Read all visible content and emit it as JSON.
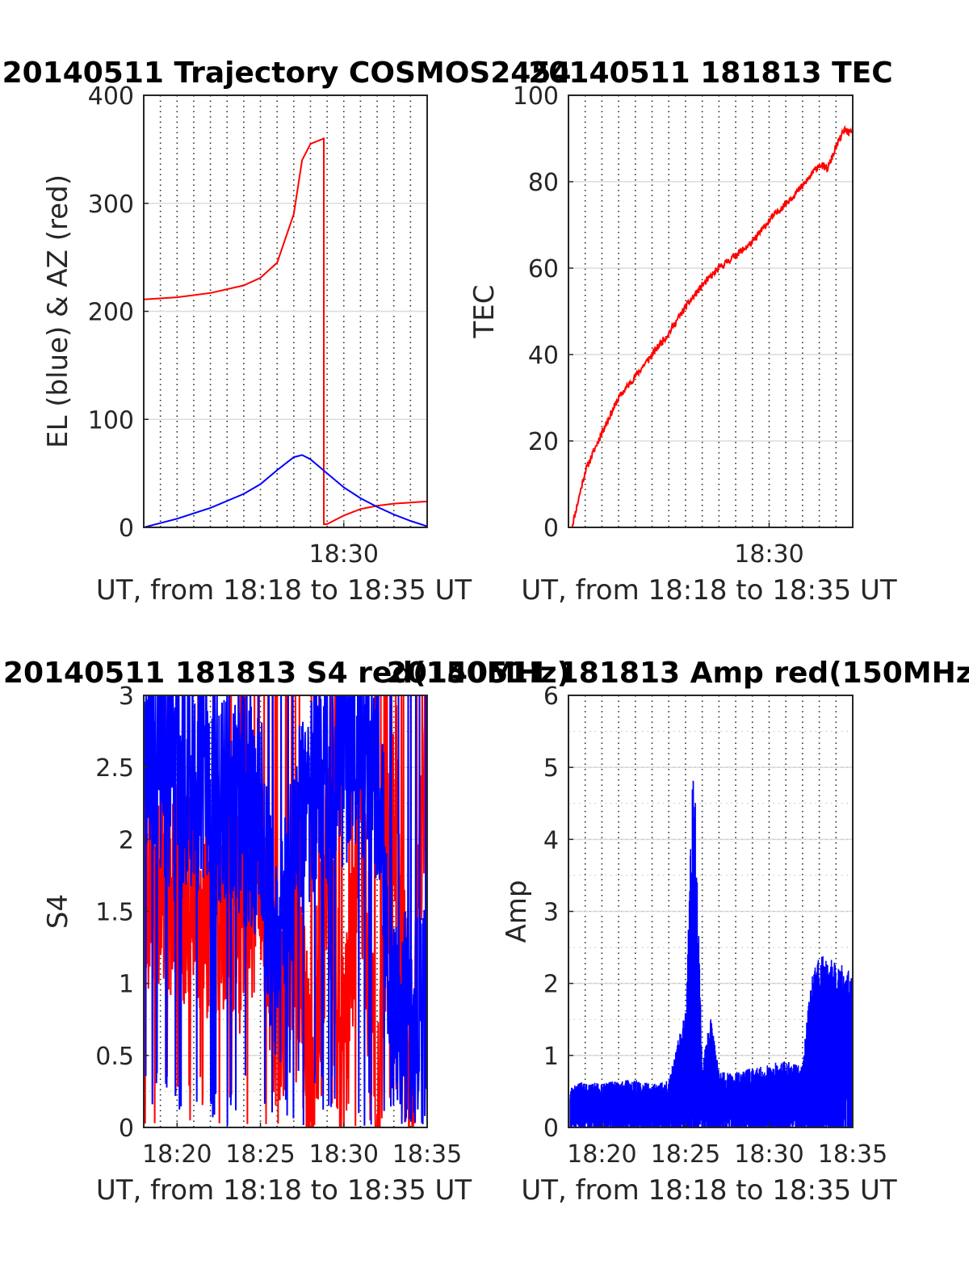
{
  "chart_data": [
    {
      "type": "line",
      "title": "20140511 Trajectory COSMOS2454",
      "xlabel": "UT, from 18:18 to 18:35 UT",
      "ylabel": "EL (blue) & AZ (red)",
      "ylim": [
        0,
        400
      ],
      "yticks": [
        "0",
        "100",
        "200",
        "300",
        "400"
      ],
      "xticks": [
        "18:30"
      ],
      "grid": "on",
      "series": [
        {
          "color": "#ff0000",
          "x": [
            "18:18",
            "18:20",
            "18:22",
            "18:24",
            "18:25",
            "18:26",
            "18:27",
            "18:27.5",
            "18:28",
            "18:28.8",
            "18:29",
            "18:29.5",
            "18:30",
            "18:31",
            "18:32",
            "18:33",
            "18:35"
          ],
          "values": [
            211,
            213,
            217,
            224,
            231,
            245,
            290,
            340,
            355,
            360,
            3,
            7,
            11,
            17,
            20,
            22,
            24
          ]
        },
        {
          "color": "#0000ff",
          "x": [
            "18:18",
            "18:20",
            "18:22",
            "18:24",
            "18:25",
            "18:26",
            "18:27",
            "18:27.5",
            "18:28",
            "18:29",
            "18:30",
            "18:31",
            "18:32",
            "18:33",
            "18:34",
            "18:35"
          ],
          "values": [
            0,
            8,
            18,
            31,
            40,
            53,
            65,
            67,
            63,
            50,
            37,
            27,
            19,
            12,
            6,
            1
          ]
        }
      ]
    },
    {
      "type": "line",
      "title": "20140511 181813 TEC",
      "xlabel": "UT, from 18:18 to 18:35 UT",
      "ylabel": "TEC",
      "ylim": [
        0,
        100
      ],
      "yticks": [
        "0",
        "20",
        "40",
        "60",
        "80",
        "100"
      ],
      "xticks": [
        "18:30"
      ],
      "grid": "on",
      "series": [
        {
          "color": "#ff0000",
          "x": [
            "18:18.2",
            "18:19",
            "18:20",
            "18:21",
            "18:22",
            "18:23",
            "18:24",
            "18:25",
            "18:26",
            "18:27",
            "18:28",
            "18:29",
            "18:30",
            "18:31",
            "18:32",
            "18:33",
            "18:33.5",
            "18:34",
            "18:34.5",
            "18:35"
          ],
          "values": [
            0,
            13,
            22,
            30,
            35,
            40,
            45,
            51,
            56,
            60,
            63,
            66,
            71,
            75,
            79,
            84,
            83,
            88,
            92,
            91
          ]
        }
      ]
    },
    {
      "type": "line",
      "title": "20140511 181813 S4 red(150MHz)",
      "xlabel": "UT, from 18:18 to 18:35 UT",
      "ylabel": "S4",
      "ylim": [
        0,
        3
      ],
      "yticks": [
        "0",
        "0.5",
        "1",
        "1.5",
        "2",
        "2.5",
        "3"
      ],
      "xticks": [
        "18:20",
        "18:25",
        "18:30",
        "18:35"
      ],
      "grid": "on",
      "series": [
        {
          "color": "#ff0000",
          "x": [
            "18:18",
            "18:19",
            "18:20",
            "18:21",
            "18:22",
            "18:23",
            "18:24",
            "18:25",
            "18:26",
            "18:27",
            "18:28",
            "18:29",
            "18:30",
            "18:31",
            "18:32",
            "18:33",
            "18:34",
            "18:35"
          ],
          "values": [
            1.8,
            1.5,
            1.6,
            1.7,
            1.3,
            1.6,
            1.4,
            1.9,
            0.7,
            1.5,
            0.2,
            1.8,
            0.3,
            2.2,
            0.1,
            2.5,
            0.2,
            2.8
          ]
        },
        {
          "color": "#0000ff",
          "x": [
            "18:18",
            "18:19",
            "18:20",
            "18:21",
            "18:22",
            "18:23",
            "18:24",
            "18:25",
            "18:26",
            "18:27",
            "18:28",
            "18:29",
            "18:30",
            "18:31",
            "18:32",
            "18:33",
            "18:34",
            "18:35"
          ],
          "values": [
            2.4,
            2.6,
            2.3,
            2.5,
            2.2,
            2.4,
            2.2,
            2.1,
            1.0,
            2.0,
            2.3,
            2.4,
            2.6,
            2.6,
            2.5,
            0.8,
            0.8,
            0.75
          ]
        }
      ]
    },
    {
      "type": "line",
      "title": "20140511 181813 Amp red(150MHz)",
      "xlabel": "UT, from 18:18 to 18:35 UT",
      "ylabel": "Amp",
      "ylim": [
        0,
        6
      ],
      "yticks": [
        "0",
        "1",
        "2",
        "3",
        "4",
        "5",
        "6"
      ],
      "xticks": [
        "18:20",
        "18:25",
        "18:30",
        "18:35"
      ],
      "grid": "on",
      "series": [
        {
          "color": "#0000ff",
          "x": [
            "18:18",
            "18:19",
            "18:20",
            "18:21",
            "18:22",
            "18:23",
            "18:24",
            "18:25",
            "18:25.5",
            "18:26",
            "18:26.5",
            "18:27",
            "18:28",
            "18:29",
            "18:30",
            "18:31",
            "18:32",
            "18:32.5",
            "18:33",
            "18:34",
            "18:35"
          ],
          "values": [
            0.5,
            0.6,
            0.55,
            0.6,
            0.6,
            0.55,
            0.6,
            1.5,
            4.9,
            0.8,
            1.4,
            0.7,
            0.7,
            0.75,
            0.8,
            0.85,
            0.8,
            1.9,
            2.2,
            2.1,
            2.0
          ]
        }
      ]
    }
  ]
}
